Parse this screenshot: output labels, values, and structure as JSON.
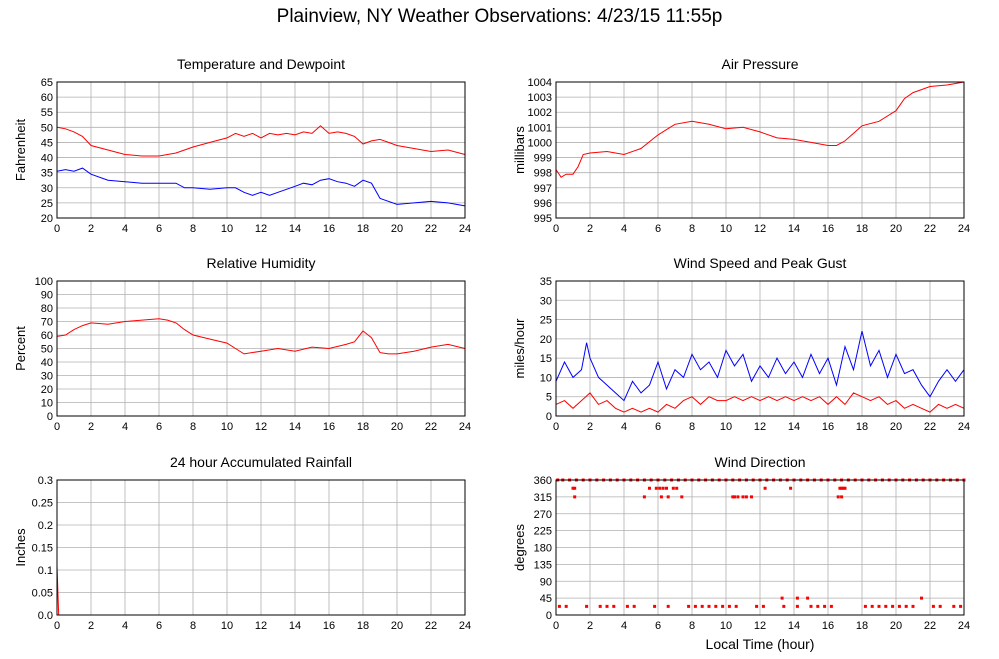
{
  "title": "Plainview, NY Weather Observations: 4/23/15 11:55p",
  "colors": {
    "series_a": "#ff0000",
    "series_b": "#0000ff",
    "grid": "#b0b0b0",
    "frame": "#000000"
  },
  "chart_data": [
    {
      "id": "temp",
      "type": "line",
      "title": "Temperature and Dewpoint",
      "ylabel": "Fahrenheit",
      "xlabel": "",
      "xlim": [
        0,
        24
      ],
      "xticks": [
        0,
        2,
        4,
        6,
        8,
        10,
        12,
        14,
        16,
        18,
        20,
        22,
        24
      ],
      "ylim": [
        20,
        65
      ],
      "yticks": [
        20,
        25,
        30,
        35,
        40,
        45,
        50,
        55,
        60,
        65
      ],
      "grid": true,
      "series": [
        {
          "color": "#ff0000",
          "x": [
            0,
            0.5,
            1,
            1.5,
            2,
            3,
            4,
            5,
            6,
            7,
            8,
            9,
            10,
            10.5,
            11,
            11.5,
            12,
            12.5,
            13,
            13.5,
            14,
            14.5,
            15,
            15.5,
            16,
            16.5,
            17,
            17.5,
            18,
            18.5,
            19,
            19.5,
            20,
            21,
            22,
            23,
            24
          ],
          "y": [
            50,
            49.5,
            48.5,
            47,
            44,
            42.5,
            41,
            40.5,
            40.5,
            41.5,
            43.5,
            45,
            46.5,
            48,
            47,
            48,
            46.5,
            48,
            47.5,
            48,
            47.5,
            48.5,
            48,
            50.5,
            48,
            48.5,
            48,
            47,
            44.5,
            45.5,
            46,
            45,
            44,
            43,
            42,
            42.5,
            41
          ]
        },
        {
          "color": "#0000ff",
          "x": [
            0,
            0.5,
            1,
            1.5,
            2,
            3,
            4,
            5,
            6,
            7,
            7.5,
            8,
            9,
            10,
            10.5,
            11,
            11.5,
            12,
            12.5,
            13,
            13.5,
            14,
            14.5,
            15,
            15.5,
            16,
            16.5,
            17,
            17.5,
            18,
            18.5,
            19,
            20,
            21,
            22,
            23,
            24
          ],
          "y": [
            35.5,
            36,
            35.5,
            36.5,
            34.5,
            32.5,
            32,
            31.5,
            31.5,
            31.5,
            30,
            30,
            29.5,
            30,
            30,
            28.5,
            27.5,
            28.5,
            27.5,
            28.5,
            29.5,
            30.5,
            31.5,
            31,
            32.5,
            33,
            32,
            31.5,
            30.5,
            32.5,
            31.5,
            26.5,
            24.5,
            25,
            25.5,
            25,
            24
          ]
        }
      ]
    },
    {
      "id": "pressure",
      "type": "line",
      "title": "Air Pressure",
      "ylabel": "millibars",
      "xlabel": "",
      "xlim": [
        0,
        24
      ],
      "xticks": [
        0,
        2,
        4,
        6,
        8,
        10,
        12,
        14,
        16,
        18,
        20,
        22,
        24
      ],
      "ylim": [
        995,
        1004
      ],
      "yticks": [
        995,
        996,
        997,
        998,
        999,
        1000,
        1001,
        1002,
        1003,
        1004
      ],
      "grid": true,
      "series": [
        {
          "color": "#ff0000",
          "x": [
            0,
            0.3,
            0.6,
            1,
            1.3,
            1.6,
            2,
            3,
            4,
            5,
            6,
            7,
            8,
            9,
            10,
            11,
            12,
            13,
            14,
            15,
            16,
            16.5,
            17,
            18,
            19,
            20,
            20.5,
            21,
            21.5,
            22,
            23,
            24
          ],
          "y": [
            998.2,
            997.7,
            997.9,
            997.9,
            998.4,
            999.2,
            999.3,
            999.4,
            999.2,
            999.6,
            1000.5,
            1001.2,
            1001.4,
            1001.2,
            1000.9,
            1001,
            1000.7,
            1000.3,
            1000.2,
            1000,
            999.8,
            999.8,
            1000.1,
            1001.1,
            1001.4,
            1002.1,
            1002.9,
            1003.3,
            1003.5,
            1003.7,
            1003.8,
            1004
          ]
        }
      ]
    },
    {
      "id": "humidity",
      "type": "line",
      "title": "Relative Humidity",
      "ylabel": "Percent",
      "xlabel": "",
      "xlim": [
        0,
        24
      ],
      "xticks": [
        0,
        2,
        4,
        6,
        8,
        10,
        12,
        14,
        16,
        18,
        20,
        22,
        24
      ],
      "ylim": [
        0,
        100
      ],
      "yticks": [
        0,
        10,
        20,
        30,
        40,
        50,
        60,
        70,
        80,
        90,
        100
      ],
      "grid": true,
      "series": [
        {
          "color": "#ff0000",
          "x": [
            0,
            0.5,
            1,
            1.5,
            2,
            3,
            4,
            5,
            6,
            6.5,
            7,
            7.5,
            8,
            9,
            10,
            10.5,
            11,
            12,
            13,
            14,
            15,
            16,
            17,
            17.5,
            18,
            18.5,
            19,
            19.5,
            20,
            21,
            22,
            23,
            24
          ],
          "y": [
            59,
            60,
            64,
            67,
            69,
            68,
            70,
            71,
            72,
            71,
            69,
            64,
            60,
            57,
            54,
            50,
            46,
            48,
            50,
            48,
            51,
            50,
            53,
            55,
            63,
            58,
            47,
            46,
            46,
            48,
            51,
            53,
            50
          ]
        }
      ]
    },
    {
      "id": "wind",
      "type": "line",
      "title": "Wind Speed and Peak Gust",
      "ylabel": "miles/hour",
      "xlabel": "",
      "xlim": [
        0,
        24
      ],
      "xticks": [
        0,
        2,
        4,
        6,
        8,
        10,
        12,
        14,
        16,
        18,
        20,
        22,
        24
      ],
      "ylim": [
        0,
        35
      ],
      "yticks": [
        0,
        5,
        10,
        15,
        20,
        25,
        30,
        35
      ],
      "grid": true,
      "series": [
        {
          "color": "#0000ff",
          "x": [
            0,
            0.5,
            1,
            1.5,
            1.8,
            2,
            2.5,
            3,
            3.5,
            4,
            4.5,
            5,
            5.5,
            6,
            6.5,
            7,
            7.5,
            8,
            8.5,
            9,
            9.5,
            10,
            10.5,
            11,
            11.5,
            12,
            12.5,
            13,
            13.5,
            14,
            14.5,
            15,
            15.5,
            16,
            16.5,
            17,
            17.5,
            18,
            18.5,
            19,
            19.5,
            20,
            20.5,
            21,
            21.5,
            22,
            22.5,
            23,
            23.5,
            24
          ],
          "y": [
            9,
            14,
            10,
            12,
            19,
            15,
            10,
            8,
            6,
            4,
            9,
            6,
            8,
            14,
            7,
            12,
            10,
            16,
            12,
            14,
            10,
            17,
            13,
            16,
            9,
            13,
            10,
            15,
            11,
            14,
            10,
            16,
            11,
            15,
            8,
            18,
            12,
            22,
            13,
            17,
            10,
            16,
            11,
            12,
            8,
            5,
            9,
            12,
            9,
            12
          ]
        },
        {
          "color": "#ff0000",
          "x": [
            0,
            0.5,
            1,
            1.5,
            2,
            2.5,
            3,
            3.5,
            4,
            4.5,
            5,
            5.5,
            6,
            6.5,
            7,
            7.5,
            8,
            8.5,
            9,
            9.5,
            10,
            10.5,
            11,
            11.5,
            12,
            12.5,
            13,
            13.5,
            14,
            14.5,
            15,
            15.5,
            16,
            16.5,
            17,
            17.5,
            18,
            18.5,
            19,
            19.5,
            20,
            20.5,
            21,
            21.5,
            22,
            22.5,
            23,
            23.5,
            24
          ],
          "y": [
            3,
            4,
            2,
            4,
            6,
            3,
            4,
            2,
            1,
            2,
            1,
            2,
            1,
            3,
            2,
            4,
            5,
            3,
            5,
            4,
            4,
            5,
            4,
            5,
            4,
            5,
            4,
            5,
            4,
            5,
            4,
            5,
            3,
            5,
            3,
            6,
            5,
            4,
            5,
            3,
            4,
            2,
            3,
            2,
            1,
            3,
            2,
            3,
            2
          ]
        }
      ]
    },
    {
      "id": "rain",
      "type": "line",
      "title": "24 hour Accumulated Rainfall",
      "ylabel": "Inches",
      "xlabel": "",
      "xlim": [
        0,
        24
      ],
      "xticks": [
        0,
        2,
        4,
        6,
        8,
        10,
        12,
        14,
        16,
        18,
        20,
        22,
        24
      ],
      "ylim": [
        0,
        0.3
      ],
      "yticks": [
        "0.0",
        "0.05",
        "0.1",
        "0.15",
        "0.2",
        "0.25",
        "0.3"
      ],
      "grid": true,
      "series": [
        {
          "color": "#ff0000",
          "x": [
            0,
            0.05,
            0.1,
            0.2,
            24
          ],
          "y": [
            0.11,
            0.05,
            0,
            0,
            0
          ]
        }
      ]
    },
    {
      "id": "direction",
      "type": "scatter",
      "title": "Wind Direction",
      "ylabel": "degrees",
      "xlabel": "Local Time (hour)",
      "xlim": [
        0,
        24
      ],
      "xticks": [
        0,
        2,
        4,
        6,
        8,
        10,
        12,
        14,
        16,
        18,
        20,
        22,
        24
      ],
      "ylim": [
        0,
        360
      ],
      "yticks": [
        0,
        45,
        90,
        135,
        180,
        225,
        270,
        315,
        360
      ],
      "grid": true,
      "series": [
        {
          "color": "#ff0000",
          "x": [
            0.1,
            0.4,
            0.8,
            1.2,
            1.6,
            2.0,
            2.4,
            2.8,
            3.2,
            3.6,
            4.0,
            4.4,
            4.8,
            5.2,
            5.6,
            6.0,
            6.4,
            6.8,
            7.2,
            7.6,
            8.0,
            8.4,
            8.8,
            9.2,
            9.6,
            10.0,
            10.4,
            10.8,
            11.2,
            11.6,
            12.0,
            12.4,
            12.8,
            13.2,
            13.6,
            14.0,
            14.4,
            14.8,
            15.2,
            15.6,
            16.0,
            16.4,
            16.8,
            17.2,
            17.6,
            18.0,
            18.4,
            18.8,
            19.2,
            19.6,
            20.0,
            20.4,
            20.8,
            21.2,
            21.6,
            22.0,
            22.4,
            22.8,
            23.2,
            23.6,
            24.0,
            0.2,
            0.6,
            1.8,
            2.6,
            3.0,
            3.4,
            4.2,
            4.6,
            5.8,
            6.6,
            7.8,
            8.2,
            8.6,
            9.0,
            9.4,
            9.8,
            10.2,
            10.6,
            11.8,
            12.2,
            13.4,
            14.2,
            15.0,
            15.4,
            15.8,
            16.2,
            18.2,
            18.6,
            19.0,
            19.4,
            19.8,
            20.2,
            20.6,
            21.0,
            22.2,
            22.6,
            23.4,
            23.8,
            1.0,
            1.1,
            5.5,
            5.9,
            6.1,
            6.3,
            6.5,
            6.9,
            7.1,
            10.4,
            10.7,
            11.0,
            11.5,
            12.3,
            13.8,
            16.7,
            16.8,
            16.9,
            17.0,
            1.1,
            5.2,
            6.2,
            6.6,
            7.4,
            10.5,
            11.2,
            16.6,
            16.8,
            13.3,
            14.2,
            14.8,
            21.5
          ],
          "y": [
            360,
            360,
            360,
            360,
            360,
            360,
            360,
            360,
            360,
            360,
            360,
            360,
            360,
            360,
            360,
            360,
            360,
            360,
            360,
            360,
            360,
            360,
            360,
            360,
            360,
            360,
            360,
            360,
            360,
            360,
            360,
            360,
            360,
            360,
            360,
            360,
            360,
            360,
            360,
            360,
            360,
            360,
            360,
            360,
            360,
            360,
            360,
            360,
            360,
            360,
            360,
            360,
            360,
            360,
            360,
            360,
            360,
            360,
            360,
            360,
            360,
            23,
            23,
            23,
            23,
            23,
            23,
            23,
            23,
            23,
            23,
            23,
            23,
            23,
            23,
            23,
            23,
            23,
            23,
            23,
            23,
            23,
            23,
            23,
            23,
            23,
            23,
            23,
            23,
            23,
            23,
            23,
            23,
            23,
            23,
            23,
            23,
            23,
            23,
            338,
            338,
            338,
            338,
            338,
            338,
            338,
            338,
            338,
            315,
            315,
            315,
            315,
            338,
            338,
            338,
            338,
            338,
            338,
            315,
            315,
            315,
            315,
            315,
            315,
            315,
            315,
            315,
            45,
            45,
            45,
            45
          ]
        }
      ]
    }
  ]
}
